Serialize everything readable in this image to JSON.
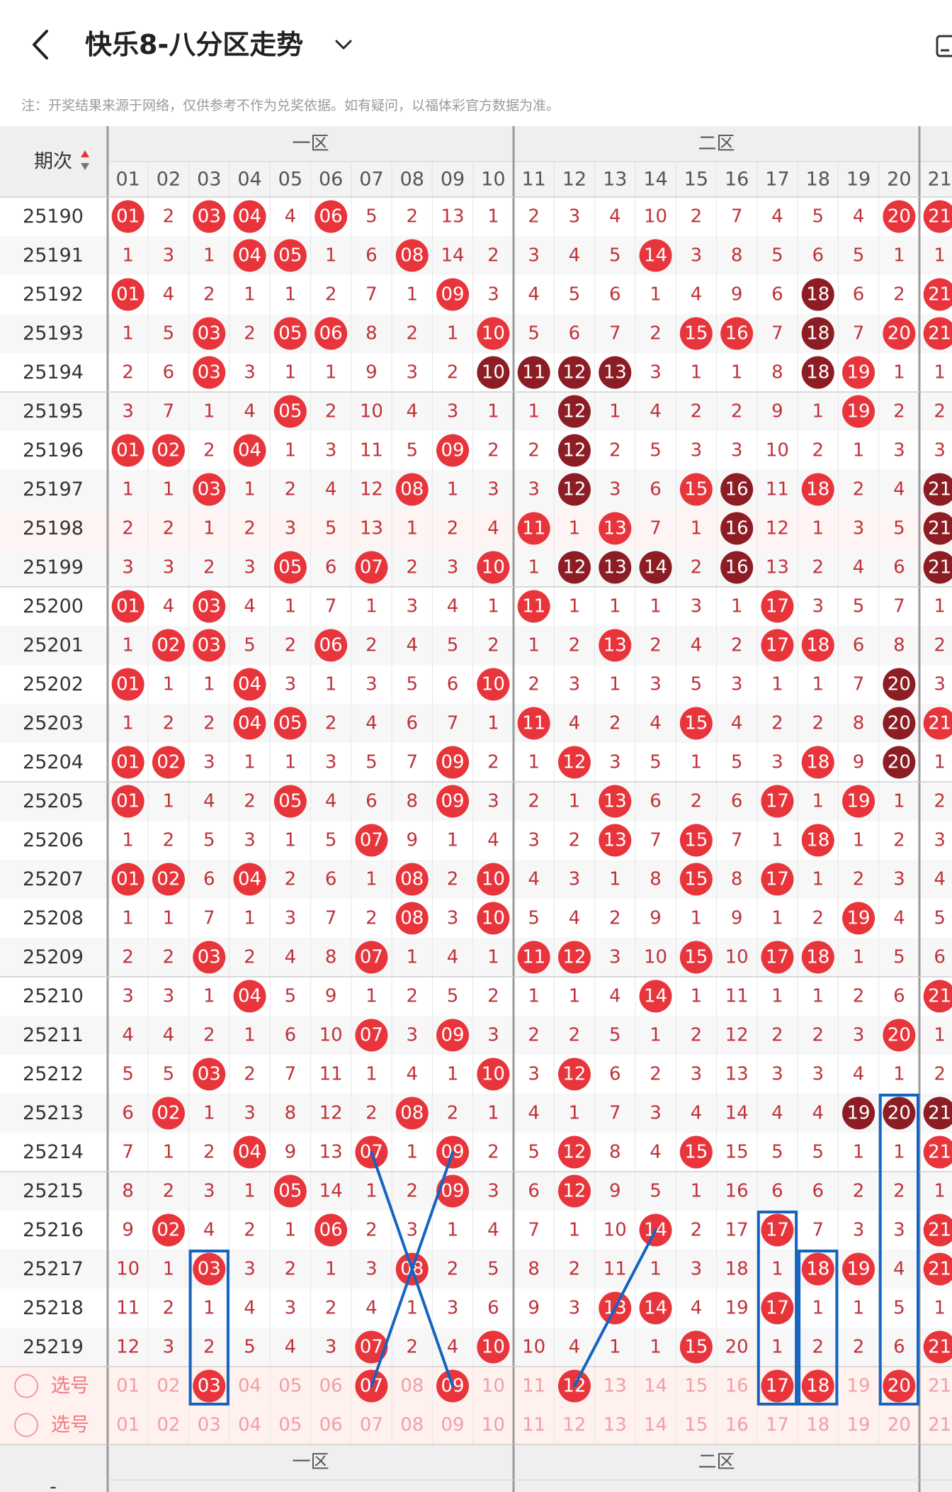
{
  "header": {
    "title": "快乐8-八分区走势",
    "back_icon": "chevron-left-icon",
    "dropdown_icon": "chevron-down-icon",
    "edit_icon": "edit-icon"
  },
  "note": "注：开奖结果来源于网络，仅供参考不作为兑奖依据。如有疑问，以福体彩官方数据为准。",
  "table": {
    "period_label": "期次",
    "zones": [
      "一区",
      "二区"
    ],
    "columns": [
      "01",
      "02",
      "03",
      "04",
      "05",
      "06",
      "07",
      "08",
      "09",
      "10",
      "11",
      "12",
      "13",
      "14",
      "15",
      "16",
      "17",
      "18",
      "19",
      "20",
      "21"
    ],
    "rows": [
      {
        "period": "25190",
        "cells": [
          "01",
          "2",
          "03",
          "04",
          "4",
          "06",
          "5",
          "2",
          "13",
          "1",
          "2",
          "3",
          "4",
          "10",
          "2",
          "7",
          "4",
          "5",
          "4",
          "20",
          "21"
        ],
        "hits": [
          1,
          3,
          4,
          6,
          20,
          21
        ],
        "dark": []
      },
      {
        "period": "25191",
        "cells": [
          "1",
          "3",
          "1",
          "04",
          "05",
          "1",
          "6",
          "08",
          "14",
          "2",
          "3",
          "4",
          "5",
          "14",
          "3",
          "8",
          "5",
          "6",
          "5",
          "1",
          "1"
        ],
        "hits": [
          4,
          5,
          8,
          14
        ],
        "dark": []
      },
      {
        "period": "25192",
        "cells": [
          "01",
          "4",
          "2",
          "1",
          "1",
          "2",
          "7",
          "1",
          "09",
          "3",
          "4",
          "5",
          "6",
          "1",
          "4",
          "9",
          "6",
          "18",
          "6",
          "2",
          "21"
        ],
        "hits": [
          1,
          9,
          18,
          21
        ],
        "dark": [
          18
        ]
      },
      {
        "period": "25193",
        "cells": [
          "1",
          "5",
          "03",
          "2",
          "05",
          "06",
          "8",
          "2",
          "1",
          "10",
          "5",
          "6",
          "7",
          "2",
          "15",
          "16",
          "7",
          "18",
          "7",
          "20",
          "21"
        ],
        "hits": [
          3,
          5,
          6,
          10,
          15,
          16,
          18,
          20,
          21
        ],
        "dark": [
          18
        ]
      },
      {
        "period": "25194",
        "cells": [
          "2",
          "6",
          "03",
          "3",
          "1",
          "1",
          "9",
          "3",
          "2",
          "10",
          "11",
          "12",
          "13",
          "3",
          "1",
          "1",
          "8",
          "18",
          "19",
          "1",
          "1"
        ],
        "hits": [
          3,
          10,
          11,
          12,
          13,
          18,
          19
        ],
        "dark": [
          10,
          11,
          12,
          13,
          18
        ]
      },
      {
        "period": "25195",
        "cells": [
          "3",
          "7",
          "1",
          "4",
          "05",
          "2",
          "10",
          "4",
          "3",
          "1",
          "1",
          "12",
          "1",
          "4",
          "2",
          "2",
          "9",
          "1",
          "19",
          "2",
          "2"
        ],
        "hits": [
          5,
          12,
          19
        ],
        "dark": [
          12
        ]
      },
      {
        "period": "25196",
        "cells": [
          "01",
          "02",
          "2",
          "04",
          "1",
          "3",
          "11",
          "5",
          "09",
          "2",
          "2",
          "12",
          "2",
          "5",
          "3",
          "3",
          "10",
          "2",
          "1",
          "3",
          "3"
        ],
        "hits": [
          1,
          2,
          4,
          9,
          12
        ],
        "dark": [
          12
        ]
      },
      {
        "period": "25197",
        "cells": [
          "1",
          "1",
          "03",
          "1",
          "2",
          "4",
          "12",
          "08",
          "1",
          "3",
          "3",
          "12",
          "3",
          "6",
          "15",
          "16",
          "11",
          "18",
          "2",
          "4",
          "21"
        ],
        "hits": [
          3,
          8,
          12,
          15,
          16,
          18,
          21
        ],
        "dark": [
          12,
          16,
          21
        ]
      },
      {
        "period": "25198",
        "cells": [
          "2",
          "2",
          "1",
          "2",
          "3",
          "5",
          "13",
          "1",
          "2",
          "4",
          "11",
          "1",
          "13",
          "7",
          "1",
          "16",
          "12",
          "1",
          "3",
          "5",
          "21"
        ],
        "hits": [
          11,
          13,
          16,
          21
        ],
        "dark": [
          16,
          21
        ]
      },
      {
        "period": "25199",
        "cells": [
          "3",
          "3",
          "2",
          "3",
          "05",
          "6",
          "07",
          "2",
          "3",
          "10",
          "1",
          "12",
          "13",
          "14",
          "2",
          "16",
          "13",
          "2",
          "4",
          "6",
          "21"
        ],
        "hits": [
          5,
          7,
          10,
          12,
          13,
          14,
          16,
          21
        ],
        "dark": [
          12,
          13,
          14,
          16,
          21
        ]
      },
      {
        "period": "25200",
        "cells": [
          "01",
          "4",
          "03",
          "4",
          "1",
          "7",
          "1",
          "3",
          "4",
          "1",
          "11",
          "1",
          "1",
          "1",
          "3",
          "1",
          "17",
          "3",
          "5",
          "7",
          "1"
        ],
        "hits": [
          1,
          3,
          11,
          17
        ],
        "dark": []
      },
      {
        "period": "25201",
        "cells": [
          "1",
          "02",
          "03",
          "5",
          "2",
          "06",
          "2",
          "4",
          "5",
          "2",
          "1",
          "2",
          "13",
          "2",
          "4",
          "2",
          "17",
          "18",
          "6",
          "8",
          "2"
        ],
        "hits": [
          2,
          3,
          6,
          13,
          17,
          18
        ],
        "dark": []
      },
      {
        "period": "25202",
        "cells": [
          "01",
          "1",
          "1",
          "04",
          "3",
          "1",
          "3",
          "5",
          "6",
          "10",
          "2",
          "3",
          "1",
          "3",
          "5",
          "3",
          "1",
          "1",
          "7",
          "20",
          "3"
        ],
        "hits": [
          1,
          4,
          10,
          20
        ],
        "dark": [
          20
        ]
      },
      {
        "period": "25203",
        "cells": [
          "1",
          "2",
          "2",
          "04",
          "05",
          "2",
          "4",
          "6",
          "7",
          "1",
          "11",
          "4",
          "2",
          "4",
          "15",
          "4",
          "2",
          "2",
          "8",
          "20",
          "21"
        ],
        "hits": [
          4,
          5,
          11,
          15,
          20,
          21
        ],
        "dark": [
          20
        ]
      },
      {
        "period": "25204",
        "cells": [
          "01",
          "02",
          "3",
          "1",
          "1",
          "3",
          "5",
          "7",
          "09",
          "2",
          "1",
          "12",
          "3",
          "5",
          "1",
          "5",
          "3",
          "18",
          "9",
          "20",
          "1"
        ],
        "hits": [
          1,
          2,
          9,
          12,
          18,
          20
        ],
        "dark": [
          20
        ]
      },
      {
        "period": "25205",
        "cells": [
          "01",
          "1",
          "4",
          "2",
          "05",
          "4",
          "6",
          "8",
          "09",
          "3",
          "2",
          "1",
          "13",
          "6",
          "2",
          "6",
          "17",
          "1",
          "19",
          "1",
          "2"
        ],
        "hits": [
          1,
          5,
          9,
          13,
          17,
          19
        ],
        "dark": []
      },
      {
        "period": "25206",
        "cells": [
          "1",
          "2",
          "5",
          "3",
          "1",
          "5",
          "07",
          "9",
          "1",
          "4",
          "3",
          "2",
          "13",
          "7",
          "15",
          "7",
          "1",
          "18",
          "1",
          "2",
          "3"
        ],
        "hits": [
          7,
          13,
          15,
          18
        ],
        "dark": []
      },
      {
        "period": "25207",
        "cells": [
          "01",
          "02",
          "6",
          "04",
          "2",
          "6",
          "1",
          "08",
          "2",
          "10",
          "4",
          "3",
          "1",
          "8",
          "15",
          "8",
          "17",
          "1",
          "2",
          "3",
          "4"
        ],
        "hits": [
          1,
          2,
          4,
          8,
          10,
          15,
          17
        ],
        "dark": []
      },
      {
        "period": "25208",
        "cells": [
          "1",
          "1",
          "7",
          "1",
          "3",
          "7",
          "2",
          "08",
          "3",
          "10",
          "5",
          "4",
          "2",
          "9",
          "1",
          "9",
          "1",
          "2",
          "19",
          "4",
          "5"
        ],
        "hits": [
          8,
          10,
          19
        ],
        "dark": []
      },
      {
        "period": "25209",
        "cells": [
          "2",
          "2",
          "03",
          "2",
          "4",
          "8",
          "07",
          "1",
          "4",
          "1",
          "11",
          "12",
          "3",
          "10",
          "15",
          "10",
          "17",
          "18",
          "1",
          "5",
          "6"
        ],
        "hits": [
          3,
          7,
          11,
          12,
          15,
          17,
          18
        ],
        "dark": []
      },
      {
        "period": "25210",
        "cells": [
          "3",
          "3",
          "1",
          "04",
          "5",
          "9",
          "1",
          "2",
          "5",
          "2",
          "1",
          "1",
          "4",
          "14",
          "1",
          "11",
          "1",
          "1",
          "2",
          "6",
          "21"
        ],
        "hits": [
          4,
          14,
          21
        ],
        "dark": []
      },
      {
        "period": "25211",
        "cells": [
          "4",
          "4",
          "2",
          "1",
          "6",
          "10",
          "07",
          "3",
          "09",
          "3",
          "2",
          "2",
          "5",
          "1",
          "2",
          "12",
          "2",
          "2",
          "3",
          "20",
          "1"
        ],
        "hits": [
          7,
          9,
          20
        ],
        "dark": []
      },
      {
        "period": "25212",
        "cells": [
          "5",
          "5",
          "03",
          "2",
          "7",
          "11",
          "1",
          "4",
          "1",
          "10",
          "3",
          "12",
          "6",
          "2",
          "3",
          "13",
          "3",
          "3",
          "4",
          "1",
          "2"
        ],
        "hits": [
          3,
          10,
          12
        ],
        "dark": []
      },
      {
        "period": "25213",
        "cells": [
          "6",
          "02",
          "1",
          "3",
          "8",
          "12",
          "2",
          "08",
          "2",
          "1",
          "4",
          "1",
          "7",
          "3",
          "4",
          "14",
          "4",
          "4",
          "19",
          "20",
          "21"
        ],
        "hits": [
          2,
          8,
          19,
          20,
          21
        ],
        "dark": [
          19,
          20,
          21
        ]
      },
      {
        "period": "25214",
        "cells": [
          "7",
          "1",
          "2",
          "04",
          "9",
          "13",
          "07",
          "1",
          "09",
          "2",
          "5",
          "12",
          "8",
          "4",
          "15",
          "15",
          "5",
          "5",
          "1",
          "1",
          "21"
        ],
        "hits": [
          4,
          7,
          9,
          12,
          15,
          21
        ],
        "dark": []
      },
      {
        "period": "25215",
        "cells": [
          "8",
          "2",
          "3",
          "1",
          "05",
          "14",
          "1",
          "2",
          "09",
          "3",
          "6",
          "12",
          "9",
          "5",
          "1",
          "16",
          "6",
          "6",
          "2",
          "2",
          "1"
        ],
        "hits": [
          5,
          9,
          12
        ],
        "dark": []
      },
      {
        "period": "25216",
        "cells": [
          "9",
          "02",
          "4",
          "2",
          "1",
          "06",
          "2",
          "3",
          "1",
          "4",
          "7",
          "1",
          "10",
          "14",
          "2",
          "17",
          "17",
          "7",
          "3",
          "3",
          "21"
        ],
        "hits": [
          2,
          6,
          14,
          17,
          21
        ],
        "dark": []
      },
      {
        "period": "25217",
        "cells": [
          "10",
          "1",
          "03",
          "3",
          "2",
          "1",
          "3",
          "08",
          "2",
          "5",
          "8",
          "2",
          "11",
          "1",
          "3",
          "18",
          "1",
          "18",
          "19",
          "4",
          "21"
        ],
        "hits": [
          3,
          8,
          18,
          19,
          21
        ],
        "dark": []
      },
      {
        "period": "25218",
        "cells": [
          "11",
          "2",
          "1",
          "4",
          "3",
          "2",
          "4",
          "1",
          "3",
          "6",
          "9",
          "3",
          "13",
          "14",
          "4",
          "19",
          "17",
          "1",
          "1",
          "5",
          "1"
        ],
        "hits": [
          13,
          14,
          17
        ],
        "dark": []
      },
      {
        "period": "25219",
        "cells": [
          "12",
          "3",
          "2",
          "5",
          "4",
          "3",
          "07",
          "2",
          "4",
          "10",
          "10",
          "4",
          "1",
          "1",
          "15",
          "20",
          "1",
          "2",
          "2",
          "6",
          "21"
        ],
        "hits": [
          7,
          10,
          15,
          21
        ],
        "dark": []
      }
    ],
    "select_label": "选号",
    "select_rows": [
      {
        "cells": [
          "01",
          "02",
          "03",
          "04",
          "05",
          "06",
          "07",
          "08",
          "09",
          "10",
          "11",
          "12",
          "13",
          "14",
          "15",
          "16",
          "17",
          "18",
          "19",
          "20",
          "21"
        ],
        "hits": [
          3,
          7,
          9,
          12,
          17,
          18,
          20
        ]
      },
      {
        "cells": [
          "01",
          "02",
          "03",
          "04",
          "05",
          "06",
          "07",
          "08",
          "09",
          "10",
          "11",
          "12",
          "13",
          "14",
          "15",
          "16",
          "17",
          "18",
          "19",
          "20",
          "21"
        ],
        "hits": []
      }
    ],
    "footer_period": "-",
    "colors": {
      "hit": "#e8353c",
      "hit_dark": "#8c1d24",
      "number": "#c0323a",
      "select_number": "#f0a0a6",
      "annotation": "#1464c0",
      "zone_divider": "#9a9a9a",
      "row_alt": "#f7f7f7",
      "header_bg": "#efefef",
      "select_bg": "#fff1ee"
    }
  }
}
